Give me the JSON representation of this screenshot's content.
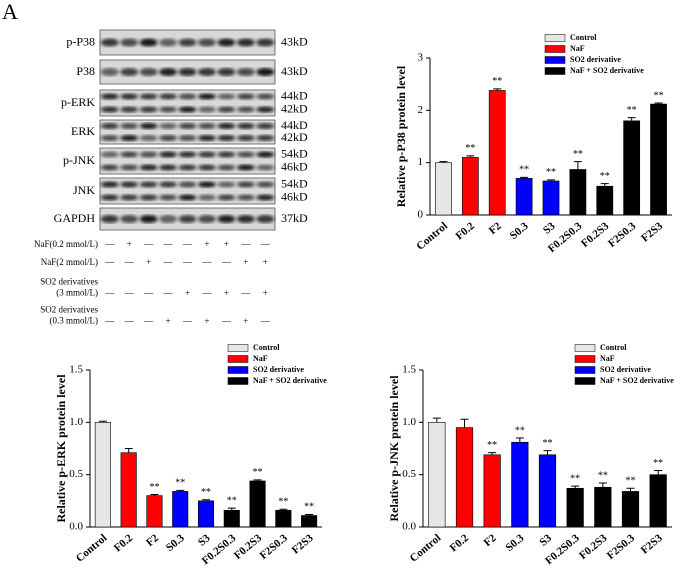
{
  "panel_label": "A",
  "blot": {
    "rows": [
      {
        "label": "p-P38",
        "sizes": [
          "43kD"
        ]
      },
      {
        "label": "P38",
        "sizes": [
          "43kD"
        ]
      },
      {
        "label": "p-ERK",
        "sizes": [
          "44kD",
          "42kD"
        ]
      },
      {
        "label": "ERK",
        "sizes": [
          "44kD",
          "42kD"
        ]
      },
      {
        "label": "p-JNK",
        "sizes": [
          "54kD",
          "46kD"
        ]
      },
      {
        "label": "JNK",
        "sizes": [
          "54kD",
          "46kD"
        ]
      },
      {
        "label": "GAPDH",
        "sizes": [
          "37kD"
        ]
      }
    ],
    "treatments": [
      {
        "label": [
          "NaF(0.2 mmol/L)"
        ],
        "signs": [
          "—",
          "+",
          "—",
          "—",
          "—",
          "+",
          "+",
          "—",
          "—"
        ]
      },
      {
        "label": [
          "NaF(2 mmol/L)"
        ],
        "signs": [
          "—",
          "—",
          "+",
          "—",
          "—",
          "—",
          "—",
          "+",
          "+"
        ]
      },
      {
        "label": [
          "SO2 derivatives",
          "(3 mmol/L)"
        ],
        "signs": [
          "—",
          "—",
          "—",
          "—",
          "+",
          "—",
          "+",
          "—",
          "+"
        ]
      },
      {
        "label": [
          "SO2 derivatives",
          "(0.3 mmol/L)"
        ],
        "signs": [
          "—",
          "—",
          "—",
          "+",
          "—",
          "+",
          "—",
          "+",
          "—"
        ]
      }
    ]
  },
  "chart_data": [
    {
      "type": "bar",
      "y_label": "Relative p-P38 protein level",
      "categories": [
        "Control",
        "F0.2",
        "F2",
        "S0.3",
        "S3",
        "F0.2S0.3",
        "F0.2S3",
        "F2S0.3",
        "F2S3"
      ],
      "values": [
        1.0,
        1.1,
        2.38,
        0.7,
        0.65,
        0.87,
        0.55,
        1.8,
        2.12
      ],
      "errors": [
        0.02,
        0.03,
        0.03,
        0.02,
        0.02,
        0.15,
        0.05,
        0.06,
        0.02
      ],
      "annotations": [
        null,
        "**",
        "**",
        "**",
        "**",
        "**",
        "**",
        "**",
        "**"
      ],
      "colors": [
        "#e6e6e6",
        "#ff0000",
        "#ff0000",
        "#0000ff",
        "#0000ff",
        "#000000",
        "#000000",
        "#000000",
        "#000000"
      ],
      "legend": [
        {
          "name": "Control",
          "color": "#e6e6e6"
        },
        {
          "name": "NaF",
          "color": "#ff0000"
        },
        {
          "name": "SO2 derivative",
          "color": "#0000ff"
        },
        {
          "name": "NaF + SO2 derivative",
          "color": "#000000"
        }
      ],
      "ylim": [
        0,
        3
      ],
      "yticks": [
        0,
        1,
        2,
        3
      ]
    },
    {
      "type": "bar",
      "y_label": "Relative p-ERK protein level",
      "categories": [
        "Control",
        "F0.2",
        "F2",
        "S0.3",
        "S3",
        "F0.2S0.3",
        "F0.2S3",
        "F2S0.3",
        "F2S3"
      ],
      "values": [
        1.0,
        0.71,
        0.3,
        0.34,
        0.25,
        0.16,
        0.44,
        0.16,
        0.11
      ],
      "errors": [
        0.01,
        0.04,
        0.01,
        0.01,
        0.01,
        0.02,
        0.01,
        0.01,
        0.01
      ],
      "annotations": [
        null,
        null,
        "**",
        "**",
        "**",
        "**",
        "**",
        "**",
        "**"
      ],
      "colors": [
        "#e6e6e6",
        "#ff0000",
        "#ff0000",
        "#0000ff",
        "#0000ff",
        "#000000",
        "#000000",
        "#000000",
        "#000000"
      ],
      "legend": [
        {
          "name": "Control",
          "color": "#e6e6e6"
        },
        {
          "name": "NaF",
          "color": "#ff0000"
        },
        {
          "name": "SO2 derivative",
          "color": "#0000ff"
        },
        {
          "name": "NaF + SO2 derivative",
          "color": "#000000"
        }
      ],
      "ylim": [
        0,
        1.5
      ],
      "yticks": [
        {
          "value": 0,
          "label": "0.0"
        },
        0.5,
        {
          "value": 1,
          "label": "1.0"
        },
        1.5
      ]
    },
    {
      "type": "bar",
      "y_label": "Relative p-JNK protein level",
      "categories": [
        "Control",
        "F0.2",
        "F2",
        "S0.3",
        "S3",
        "F0.2S0.3",
        "F0.2S3",
        "F2S0.3",
        "F2S3"
      ],
      "values": [
        1.0,
        0.95,
        0.69,
        0.81,
        0.69,
        0.37,
        0.38,
        0.34,
        0.5
      ],
      "errors": [
        0.04,
        0.08,
        0.02,
        0.04,
        0.04,
        0.02,
        0.04,
        0.03,
        0.04
      ],
      "annotations": [
        null,
        null,
        "**",
        "**",
        "**",
        "**",
        "**",
        "**",
        "**"
      ],
      "colors": [
        "#e6e6e6",
        "#ff0000",
        "#ff0000",
        "#0000ff",
        "#0000ff",
        "#000000",
        "#000000",
        "#000000",
        "#000000"
      ],
      "legend": [
        {
          "name": "Control",
          "color": "#e6e6e6"
        },
        {
          "name": "NaF",
          "color": "#ff0000"
        },
        {
          "name": "SO2 derivative",
          "color": "#0000ff"
        },
        {
          "name": "NaF + SO2 derivative",
          "color": "#000000"
        }
      ],
      "ylim": [
        0,
        1.5
      ],
      "yticks": [
        {
          "value": 0,
          "label": "0.0"
        },
        0.5,
        {
          "value": 1,
          "label": "1.0"
        },
        1.5
      ]
    }
  ]
}
